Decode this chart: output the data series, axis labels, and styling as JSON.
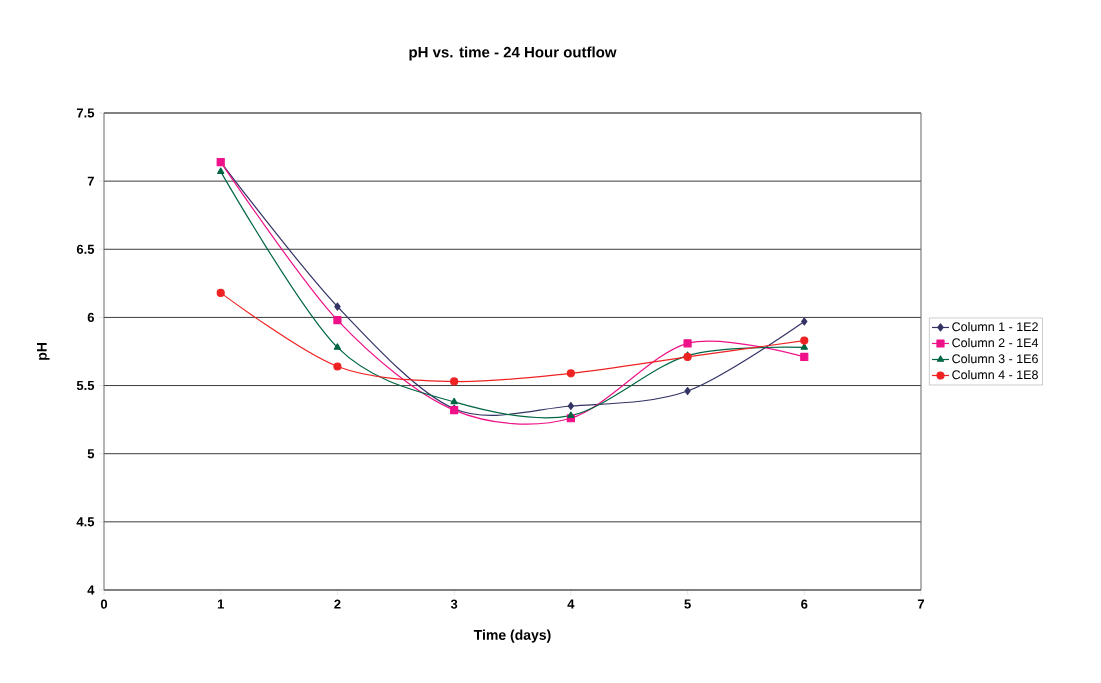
{
  "chart_data": {
    "type": "line",
    "title": "pH vs. time - 24 Hour outflow",
    "xlabel": "Time (days)",
    "ylabel": "pH",
    "x": [
      1,
      2,
      3,
      4,
      5,
      6
    ],
    "series": [
      {
        "name": "Column 1 - 1E2",
        "color": "#333366",
        "marker": "diamond",
        "values": [
          7.14,
          6.08,
          5.33,
          5.35,
          5.46,
          5.97
        ]
      },
      {
        "name": "Column 2 - 1E4",
        "color": "#ee1188",
        "marker": "square",
        "values": [
          7.14,
          5.98,
          5.32,
          5.26,
          5.81,
          5.71
        ]
      },
      {
        "name": "Column 3 - 1E6",
        "color": "#006644",
        "marker": "triangle",
        "values": [
          7.07,
          5.78,
          5.38,
          5.28,
          5.72,
          5.78
        ]
      },
      {
        "name": "Column 4 - 1E8",
        "color": "#ee2222",
        "marker": "circle",
        "values": [
          6.18,
          5.64,
          5.53,
          5.59,
          5.71,
          5.83
        ]
      }
    ],
    "xlim": [
      0,
      7
    ],
    "xticks": [
      0,
      1,
      2,
      3,
      4,
      5,
      6,
      7
    ],
    "ylim": [
      4,
      7.5
    ],
    "yticks": [
      4,
      4.5,
      5,
      5.5,
      6,
      6.5,
      7,
      7.5
    ],
    "grid": "y",
    "legend": "right",
    "line_style": "solid"
  }
}
